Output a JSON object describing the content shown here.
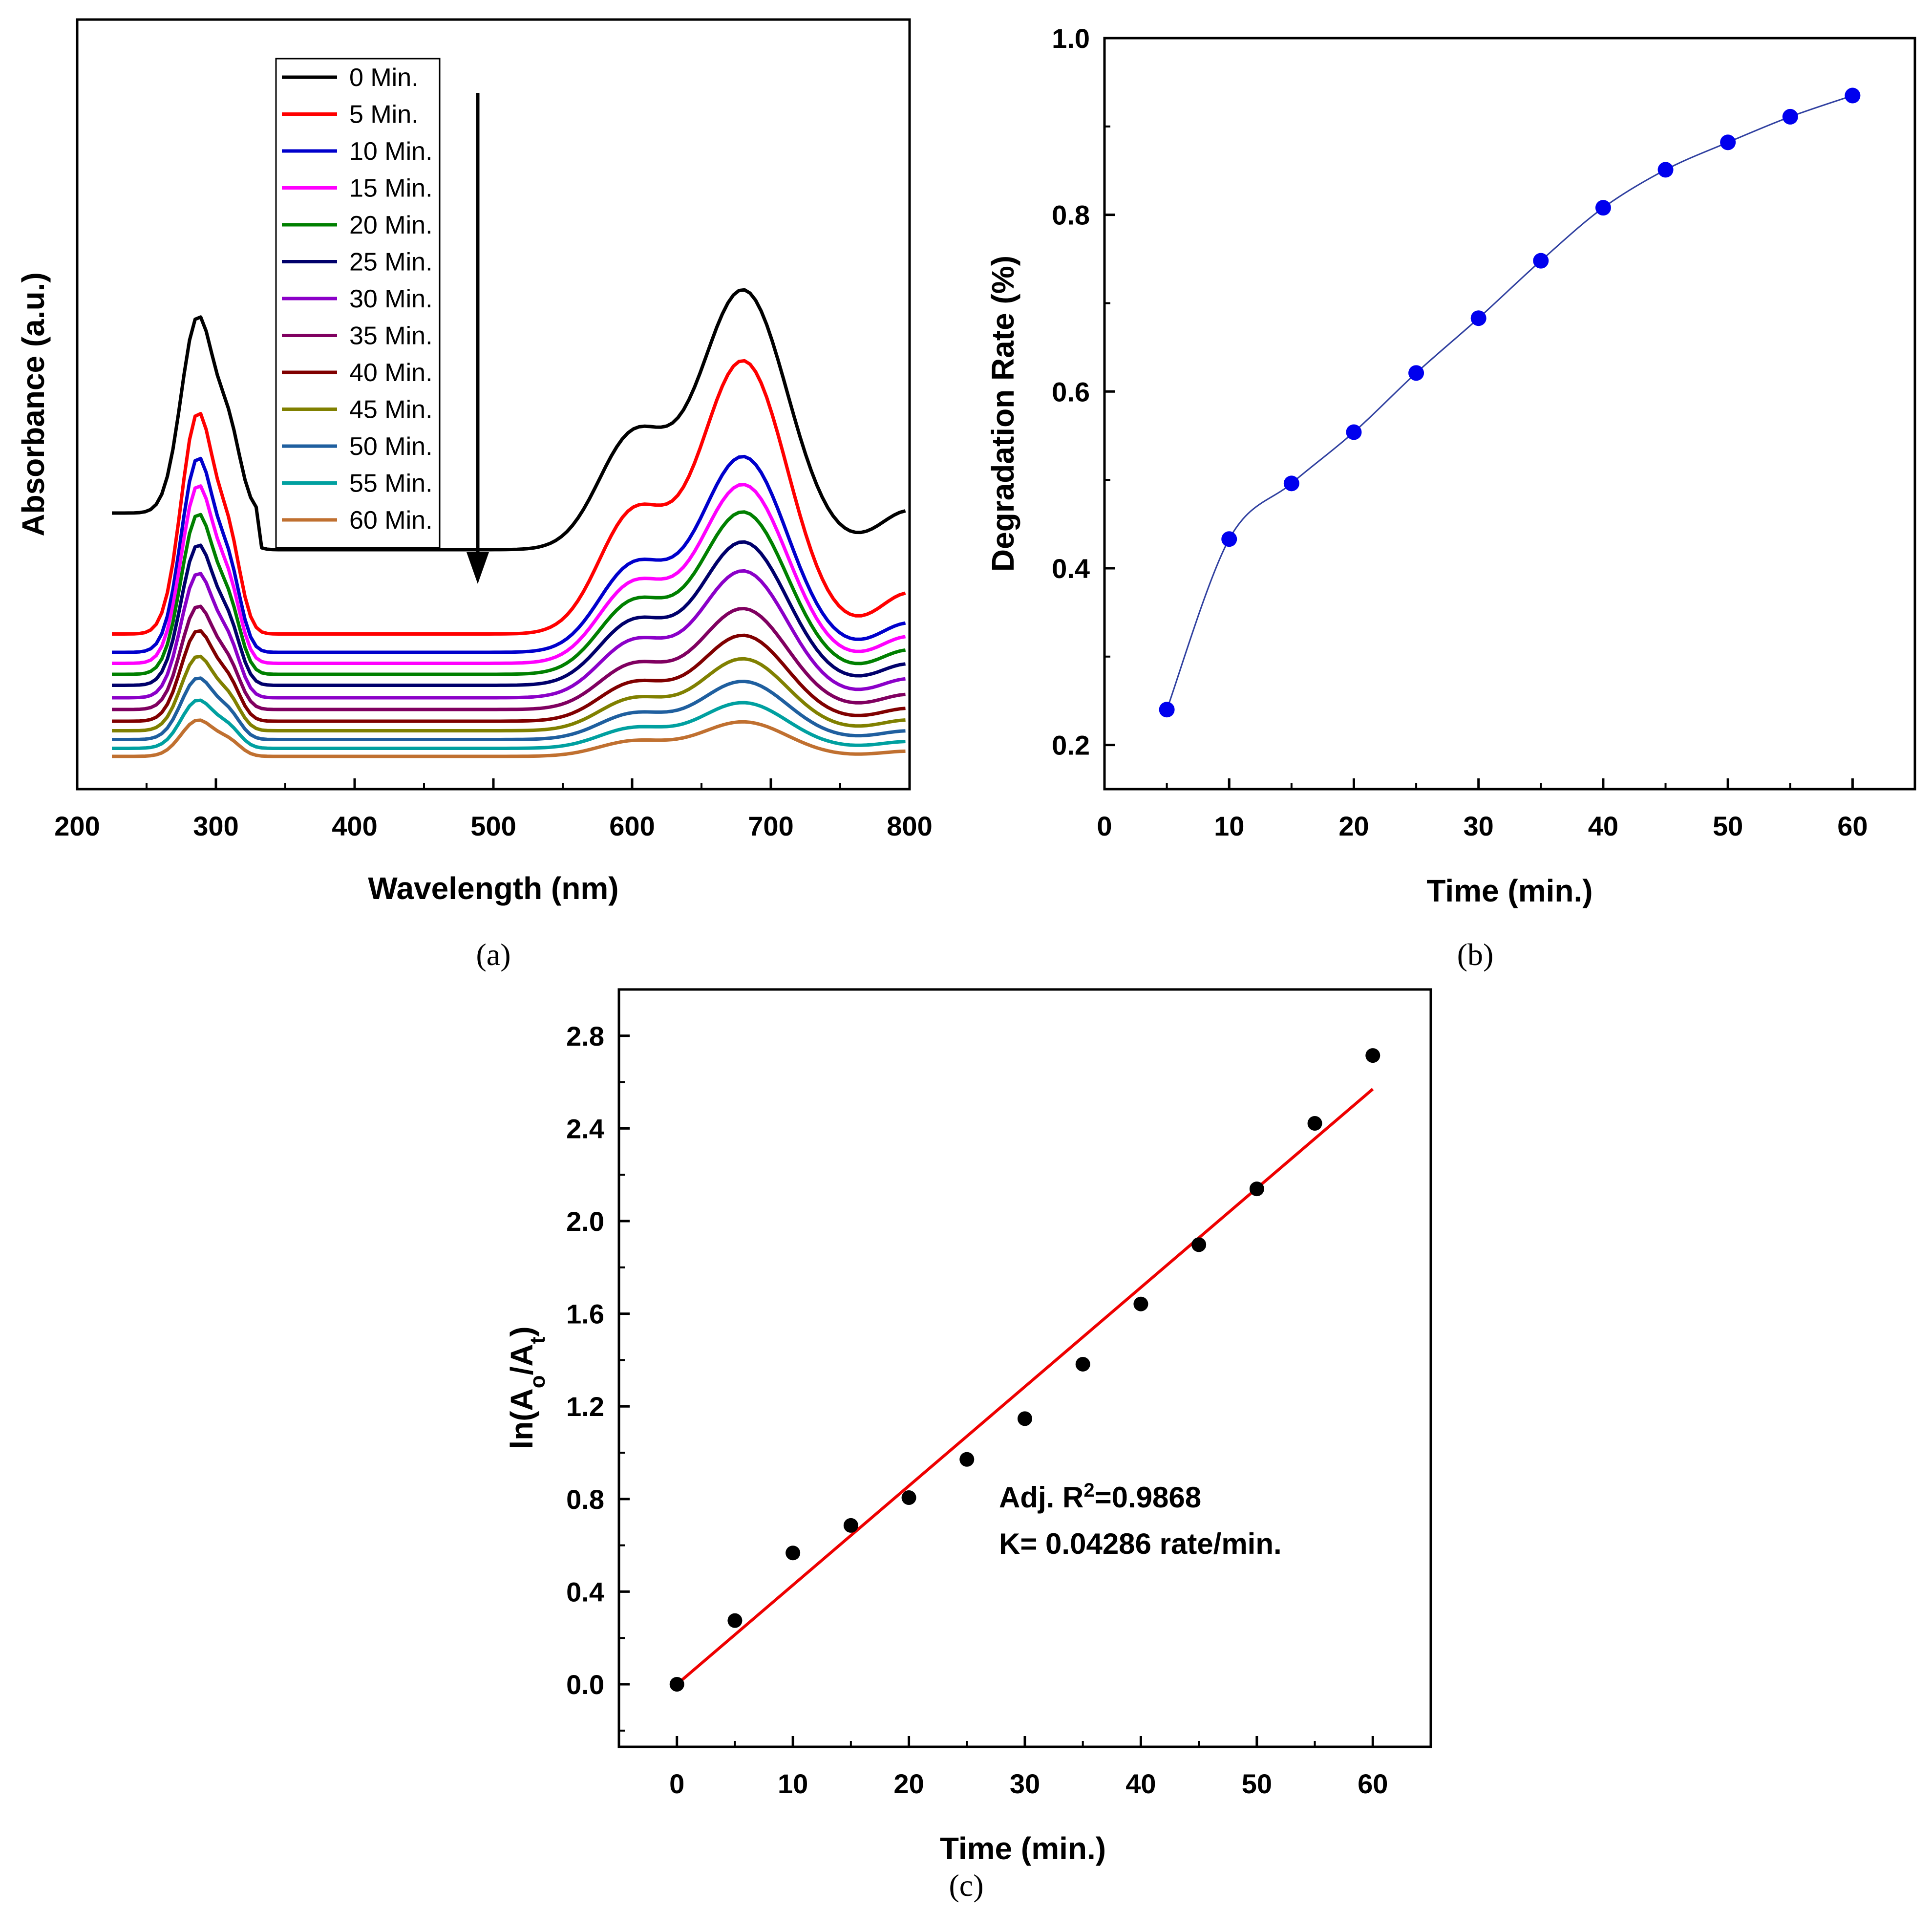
{
  "chart_data": [
    {
      "panel": "(a)",
      "type": "line",
      "xlabel": "Wavelength (nm)",
      "ylabel": "Absorbance (a.u.)",
      "xlim": [
        200,
        800
      ],
      "x_ticks": [
        200,
        300,
        400,
        500,
        600,
        700,
        800
      ],
      "y_ticks": [],
      "legend": "top-left",
      "arrow": "downward",
      "series": [
        {
          "name": "0 Min.",
          "color": "#000000",
          "base": 0.3,
          "peak1": 0.485,
          "peak2": 0.59
        },
        {
          "name": "5 Min.",
          "color": "#ff0000",
          "base": 0.185,
          "peak1": 0.58,
          "peak2": 0.66
        },
        {
          "name": "10 Min.",
          "color": "#0000cc",
          "base": 0.16,
          "peak1": 0.545,
          "peak2": 0.505
        },
        {
          "name": "15 Min.",
          "color": "#ff00ff",
          "base": 0.145,
          "peak1": 0.535,
          "peak2": 0.495
        },
        {
          "name": "20 Min.",
          "color": "#008000",
          "base": 0.13,
          "peak1": 0.52,
          "peak2": 0.485
        },
        {
          "name": "25 Min.",
          "color": "#00006b",
          "base": 0.115,
          "peak1": 0.495,
          "peak2": 0.465
        },
        {
          "name": "30 Min.",
          "color": "#8b00c8",
          "base": 0.098,
          "peak1": 0.48,
          "peak2": 0.45
        },
        {
          "name": "35 Min.",
          "color": "#800060",
          "base": 0.082,
          "peak1": 0.44,
          "peak2": 0.395
        },
        {
          "name": "40 Min.",
          "color": "#800000",
          "base": 0.066,
          "peak1": 0.43,
          "peak2": 0.375
        },
        {
          "name": "45 Min.",
          "color": "#808000",
          "base": 0.053,
          "peak1": 0.4,
          "peak2": 0.355
        },
        {
          "name": "50 Min.",
          "color": "#1f5f9f",
          "base": 0.041,
          "peak1": 0.38,
          "peak2": 0.33
        },
        {
          "name": "55 Min.",
          "color": "#00a0a0",
          "base": 0.029,
          "peak1": 0.35,
          "peak2": 0.305
        },
        {
          "name": "60 Min.",
          "color": "#c07030",
          "base": 0.018,
          "peak1": 0.32,
          "peak2": 0.28
        }
      ]
    },
    {
      "panel": "(b)",
      "type": "scatter",
      "xlabel": "Time (min.)",
      "ylabel": "Degradation Rate (%)",
      "xlim": [
        0,
        65
      ],
      "ylim": [
        0.15,
        1.0
      ],
      "x_ticks": [
        0,
        10,
        20,
        30,
        40,
        50,
        60
      ],
      "y_ticks": [
        "0.2",
        "0.4",
        "0.6",
        "0.8",
        "1.0"
      ],
      "color": "#0000ee",
      "line_color": "#3040a0",
      "x": [
        5,
        10,
        15,
        20,
        25,
        30,
        35,
        40,
        45,
        50,
        55,
        60
      ],
      "y": [
        0.24,
        0.433,
        0.496,
        0.554,
        0.621,
        0.683,
        0.748,
        0.808,
        0.851,
        0.882,
        0.911,
        0.935
      ]
    },
    {
      "panel": "(c)",
      "type": "scatter",
      "xlabel": "Time (min.)",
      "ylabel": "ln(Ao/At)",
      "ylabel_parts": [
        "ln(A",
        "o",
        "/A",
        "t",
        ")"
      ],
      "xlim": [
        -5,
        65
      ],
      "ylim": [
        -0.27,
        3.0
      ],
      "x_ticks": [
        0,
        10,
        20,
        30,
        40,
        50,
        60
      ],
      "y_ticks": [
        "0.0",
        "0.4",
        "0.8",
        "1.2",
        "1.6",
        "2.0",
        "2.4",
        "2.8"
      ],
      "color": "#000000",
      "fit_color": "#ee0000",
      "x": [
        0,
        5,
        10,
        15,
        20,
        25,
        30,
        35,
        40,
        45,
        50,
        55,
        60
      ],
      "y": [
        0.0,
        0.275,
        0.567,
        0.686,
        0.806,
        0.971,
        1.147,
        1.382,
        1.642,
        1.898,
        2.139,
        2.422,
        2.715
      ],
      "fit": {
        "x": [
          0,
          60
        ],
        "y": [
          0.0,
          2.57
        ]
      },
      "annotation_line1_parts": [
        "Adj. R",
        "2",
        "=0.9868"
      ],
      "annotation_line2": "K= 0.04286 rate/min."
    }
  ]
}
